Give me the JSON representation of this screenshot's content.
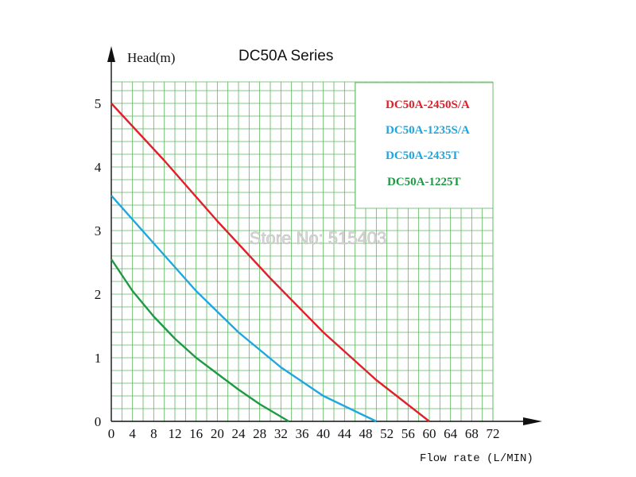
{
  "chart_data": {
    "type": "line",
    "title": "DC50A Series",
    "ylabel": "Head(m)",
    "xlabel": "Flow rate (L/MIN)",
    "xlim": [
      0,
      72
    ],
    "ylim": [
      0,
      5.4
    ],
    "x_ticks": [
      0,
      4,
      8,
      12,
      16,
      20,
      24,
      28,
      32,
      36,
      40,
      44,
      48,
      52,
      56,
      60,
      64,
      68,
      72
    ],
    "y_ticks": [
      0,
      1,
      2,
      3,
      4,
      5
    ],
    "grid": true,
    "legend_position": "top-right",
    "series": [
      {
        "name": "DC50A-2450S/A",
        "color": "#e0202a",
        "x": [
          0,
          10,
          20,
          30,
          40,
          50,
          60
        ],
        "y": [
          5.0,
          4.1,
          3.15,
          2.25,
          1.4,
          0.65,
          0
        ]
      },
      {
        "name": "DC50A-1235S/A",
        "color": "#1ea6e0",
        "x": [
          0,
          8,
          16,
          24,
          32,
          40,
          50
        ],
        "y": [
          3.55,
          2.8,
          2.05,
          1.4,
          0.85,
          0.4,
          0
        ]
      },
      {
        "name": "DC50A-2435T",
        "color": "#1ea6e0",
        "x": [],
        "y": []
      },
      {
        "name": "DC50A-1225T",
        "color": "#1e9a44",
        "x": [
          0,
          4,
          8,
          12,
          16,
          20,
          24,
          28,
          33.5
        ],
        "y": [
          2.55,
          2.05,
          1.65,
          1.3,
          1.0,
          0.75,
          0.5,
          0.27,
          0
        ]
      }
    ]
  },
  "watermark": "Store No: 515403",
  "colors": {
    "grid": "#5cb85c",
    "axis": "#111111"
  }
}
